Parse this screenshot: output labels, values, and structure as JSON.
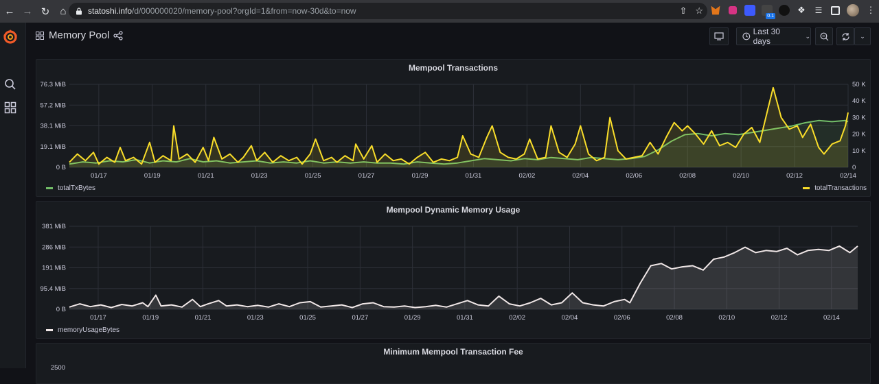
{
  "browser": {
    "url_host": "statoshi.info",
    "url_path": "/d/000000020/memory-pool?orgId=1&from=now-30d&to=now",
    "ext_badge": "0.1"
  },
  "nav": {
    "title": "Memory Pool",
    "time_range": "Last 30 days"
  },
  "panels": {
    "mempool_tx": {
      "title": "Mempool Transactions",
      "left_ticks": [
        "76.3 MiB",
        "57.2 MiB",
        "38.1 MiB",
        "19.1 MiB",
        "0 B"
      ],
      "right_ticks": [
        "50 K",
        "40 K",
        "30 K",
        "20 K",
        "10 K",
        "0"
      ],
      "legend_left": "totalTxBytes",
      "legend_right": "totalTransactions"
    },
    "dyn_mem": {
      "title": "Mempool Dynamic Memory Usage",
      "left_ticks": [
        "381 MiB",
        "286 MiB",
        "191 MiB",
        "95.4 MiB",
        "0 B"
      ],
      "legend": "memoryUsageBytes"
    },
    "min_fee": {
      "title": "Minimum Mempool Transaction Fee",
      "first_tick": "2500"
    }
  },
  "colors": {
    "green": "#73bf69",
    "yellow": "#fade2a",
    "white": "#f0e7e7",
    "grid": "#2d3038"
  },
  "chart_data": [
    {
      "type": "area",
      "title": "Mempool Transactions",
      "x_ticks": [
        "01/17",
        "01/19",
        "01/21",
        "01/23",
        "01/25",
        "01/27",
        "01/29",
        "01/31",
        "02/02",
        "02/04",
        "02/06",
        "02/08",
        "02/10",
        "02/12",
        "02/14"
      ],
      "x_range_days": [
        15.9,
        45.0
      ],
      "ylim_left_mib": [
        0,
        76.3
      ],
      "ylim_right": [
        0,
        50000
      ],
      "legend_placement": "bottom",
      "series": [
        {
          "name": "totalTxBytes",
          "axis": "left",
          "unit": "MiB",
          "color": "#73bf69",
          "points": [
            [
              15.9,
              3
            ],
            [
              16.4,
              5
            ],
            [
              16.9,
              4
            ],
            [
              17.4,
              6
            ],
            [
              17.9,
              5
            ],
            [
              18.4,
              7
            ],
            [
              18.9,
              4
            ],
            [
              19.4,
              6
            ],
            [
              19.9,
              5
            ],
            [
              20.4,
              8
            ],
            [
              20.9,
              5
            ],
            [
              21.4,
              6
            ],
            [
              21.9,
              4
            ],
            [
              22.4,
              5
            ],
            [
              22.9,
              6
            ],
            [
              23.4,
              4
            ],
            [
              23.9,
              5
            ],
            [
              24.4,
              4
            ],
            [
              24.9,
              6
            ],
            [
              25.4,
              4
            ],
            [
              25.9,
              5
            ],
            [
              26.4,
              4
            ],
            [
              26.9,
              5
            ],
            [
              27.4,
              4
            ],
            [
              27.9,
              4
            ],
            [
              28.4,
              3
            ],
            [
              28.9,
              5
            ],
            [
              29.4,
              4
            ],
            [
              29.9,
              3
            ],
            [
              30.4,
              4
            ],
            [
              30.9,
              6
            ],
            [
              31.4,
              8
            ],
            [
              31.9,
              7
            ],
            [
              32.4,
              6
            ],
            [
              32.9,
              8
            ],
            [
              33.4,
              7
            ],
            [
              33.9,
              9
            ],
            [
              34.4,
              8
            ],
            [
              34.9,
              7
            ],
            [
              35.4,
              9
            ],
            [
              35.9,
              8
            ],
            [
              36.4,
              7
            ],
            [
              36.9,
              8
            ],
            [
              37.4,
              10
            ],
            [
              37.9,
              16
            ],
            [
              38.4,
              24
            ],
            [
              38.9,
              30
            ],
            [
              39.4,
              31
            ],
            [
              39.9,
              29
            ],
            [
              40.4,
              31
            ],
            [
              40.9,
              30
            ],
            [
              41.4,
              32
            ],
            [
              41.9,
              34
            ],
            [
              42.4,
              36
            ],
            [
              42.9,
              38
            ],
            [
              43.4,
              41
            ],
            [
              43.9,
              43
            ],
            [
              44.4,
              42
            ],
            [
              44.9,
              43
            ],
            [
              45.0,
              42
            ]
          ]
        },
        {
          "name": "totalTransactions",
          "axis": "right",
          "unit": "count",
          "color": "#fade2a",
          "points": [
            [
              15.9,
              3000
            ],
            [
              16.2,
              8000
            ],
            [
              16.5,
              4000
            ],
            [
              16.8,
              9000
            ],
            [
              17.0,
              2000
            ],
            [
              17.3,
              6000
            ],
            [
              17.6,
              3000
            ],
            [
              17.8,
              12000
            ],
            [
              18.0,
              4000
            ],
            [
              18.3,
              6000
            ],
            [
              18.6,
              2000
            ],
            [
              18.9,
              15000
            ],
            [
              19.1,
              3000
            ],
            [
              19.4,
              7000
            ],
            [
              19.7,
              4000
            ],
            [
              19.8,
              25000
            ],
            [
              20.0,
              5000
            ],
            [
              20.3,
              8000
            ],
            [
              20.6,
              3000
            ],
            [
              20.9,
              12000
            ],
            [
              21.1,
              4000
            ],
            [
              21.3,
              18000
            ],
            [
              21.6,
              5000
            ],
            [
              21.9,
              8000
            ],
            [
              22.2,
              3000
            ],
            [
              22.4,
              6000
            ],
            [
              22.7,
              13000
            ],
            [
              22.9,
              4000
            ],
            [
              23.2,
              9000
            ],
            [
              23.5,
              3000
            ],
            [
              23.8,
              7000
            ],
            [
              24.1,
              4000
            ],
            [
              24.4,
              6000
            ],
            [
              24.6,
              2000
            ],
            [
              24.9,
              8000
            ],
            [
              25.1,
              17000
            ],
            [
              25.4,
              4000
            ],
            [
              25.7,
              6000
            ],
            [
              25.9,
              3000
            ],
            [
              26.2,
              7000
            ],
            [
              26.5,
              4000
            ],
            [
              26.6,
              14000
            ],
            [
              26.9,
              5000
            ],
            [
              27.2,
              13000
            ],
            [
              27.4,
              3000
            ],
            [
              27.7,
              8000
            ],
            [
              28.0,
              4000
            ],
            [
              28.3,
              5000
            ],
            [
              28.6,
              2000
            ],
            [
              28.9,
              6000
            ],
            [
              29.2,
              9000
            ],
            [
              29.5,
              3000
            ],
            [
              29.8,
              5000
            ],
            [
              30.1,
              4000
            ],
            [
              30.4,
              6000
            ],
            [
              30.6,
              19000
            ],
            [
              30.9,
              8000
            ],
            [
              31.2,
              6000
            ],
            [
              31.5,
              18000
            ],
            [
              31.7,
              25000
            ],
            [
              32.0,
              9000
            ],
            [
              32.3,
              6000
            ],
            [
              32.6,
              5000
            ],
            [
              32.9,
              8000
            ],
            [
              33.1,
              17000
            ],
            [
              33.4,
              5000
            ],
            [
              33.7,
              6000
            ],
            [
              33.9,
              25000
            ],
            [
              34.2,
              9000
            ],
            [
              34.5,
              6000
            ],
            [
              34.8,
              14000
            ],
            [
              35.0,
              25000
            ],
            [
              35.3,
              8000
            ],
            [
              35.6,
              4000
            ],
            [
              35.9,
              6000
            ],
            [
              36.1,
              30000
            ],
            [
              36.4,
              10000
            ],
            [
              36.7,
              5000
            ],
            [
              37.0,
              6000
            ],
            [
              37.3,
              7000
            ],
            [
              37.6,
              15000
            ],
            [
              37.9,
              8000
            ],
            [
              38.2,
              18000
            ],
            [
              38.5,
              27000
            ],
            [
              38.8,
              22000
            ],
            [
              39.0,
              25000
            ],
            [
              39.3,
              20000
            ],
            [
              39.6,
              14000
            ],
            [
              39.9,
              22000
            ],
            [
              40.2,
              13000
            ],
            [
              40.5,
              15000
            ],
            [
              40.8,
              12000
            ],
            [
              41.1,
              20000
            ],
            [
              41.4,
              24000
            ],
            [
              41.7,
              15000
            ],
            [
              42.0,
              35000
            ],
            [
              42.2,
              48000
            ],
            [
              42.5,
              30000
            ],
            [
              42.8,
              23000
            ],
            [
              43.1,
              25000
            ],
            [
              43.3,
              18000
            ],
            [
              43.6,
              26000
            ],
            [
              43.9,
              12000
            ],
            [
              44.1,
              8000
            ],
            [
              44.4,
              14000
            ],
            [
              44.7,
              16000
            ],
            [
              44.9,
              25000
            ],
            [
              45.0,
              33000
            ]
          ]
        }
      ]
    },
    {
      "type": "area",
      "title": "Mempool Dynamic Memory Usage",
      "x_ticks": [
        "01/17",
        "01/19",
        "01/21",
        "01/23",
        "01/25",
        "01/27",
        "01/29",
        "01/31",
        "02/02",
        "02/04",
        "02/06",
        "02/08",
        "02/10",
        "02/12",
        "02/14"
      ],
      "x_range_days": [
        15.9,
        46.0
      ],
      "ylim_mib": [
        0,
        381
      ],
      "legend_placement": "bottom-left",
      "series": [
        {
          "name": "memoryUsageBytes",
          "unit": "MiB",
          "color": "#f0e7e7",
          "points": [
            [
              15.9,
              10
            ],
            [
              16.3,
              25
            ],
            [
              16.7,
              12
            ],
            [
              17.1,
              20
            ],
            [
              17.5,
              8
            ],
            [
              17.9,
              22
            ],
            [
              18.3,
              15
            ],
            [
              18.7,
              30
            ],
            [
              18.9,
              12
            ],
            [
              19.2,
              65
            ],
            [
              19.4,
              15
            ],
            [
              19.8,
              20
            ],
            [
              20.2,
              10
            ],
            [
              20.6,
              45
            ],
            [
              20.9,
              12
            ],
            [
              21.2,
              25
            ],
            [
              21.6,
              40
            ],
            [
              21.9,
              15
            ],
            [
              22.3,
              20
            ],
            [
              22.7,
              12
            ],
            [
              23.1,
              18
            ],
            [
              23.5,
              10
            ],
            [
              23.9,
              25
            ],
            [
              24.3,
              12
            ],
            [
              24.7,
              30
            ],
            [
              25.1,
              35
            ],
            [
              25.5,
              10
            ],
            [
              25.9,
              15
            ],
            [
              26.3,
              20
            ],
            [
              26.7,
              8
            ],
            [
              27.1,
              25
            ],
            [
              27.5,
              30
            ],
            [
              27.9,
              12
            ],
            [
              28.3,
              10
            ],
            [
              28.7,
              15
            ],
            [
              29.1,
              8
            ],
            [
              29.5,
              12
            ],
            [
              29.9,
              18
            ],
            [
              30.3,
              10
            ],
            [
              30.7,
              25
            ],
            [
              31.1,
              40
            ],
            [
              31.5,
              20
            ],
            [
              31.9,
              15
            ],
            [
              32.3,
              60
            ],
            [
              32.7,
              25
            ],
            [
              33.1,
              15
            ],
            [
              33.5,
              30
            ],
            [
              33.9,
              50
            ],
            [
              34.3,
              20
            ],
            [
              34.7,
              30
            ],
            [
              35.1,
              75
            ],
            [
              35.5,
              30
            ],
            [
              35.9,
              20
            ],
            [
              36.3,
              15
            ],
            [
              36.7,
              35
            ],
            [
              37.1,
              45
            ],
            [
              37.3,
              30
            ],
            [
              37.7,
              120
            ],
            [
              38.1,
              200
            ],
            [
              38.5,
              210
            ],
            [
              38.9,
              185
            ],
            [
              39.3,
              195
            ],
            [
              39.7,
              200
            ],
            [
              40.1,
              180
            ],
            [
              40.5,
              230
            ],
            [
              40.9,
              240
            ],
            [
              41.3,
              260
            ],
            [
              41.7,
              285
            ],
            [
              42.1,
              260
            ],
            [
              42.5,
              270
            ],
            [
              42.9,
              265
            ],
            [
              43.3,
              280
            ],
            [
              43.7,
              250
            ],
            [
              44.1,
              270
            ],
            [
              44.5,
              275
            ],
            [
              44.9,
              270
            ],
            [
              45.3,
              290
            ],
            [
              45.7,
              260
            ],
            [
              46.0,
              290
            ]
          ]
        }
      ]
    }
  ]
}
